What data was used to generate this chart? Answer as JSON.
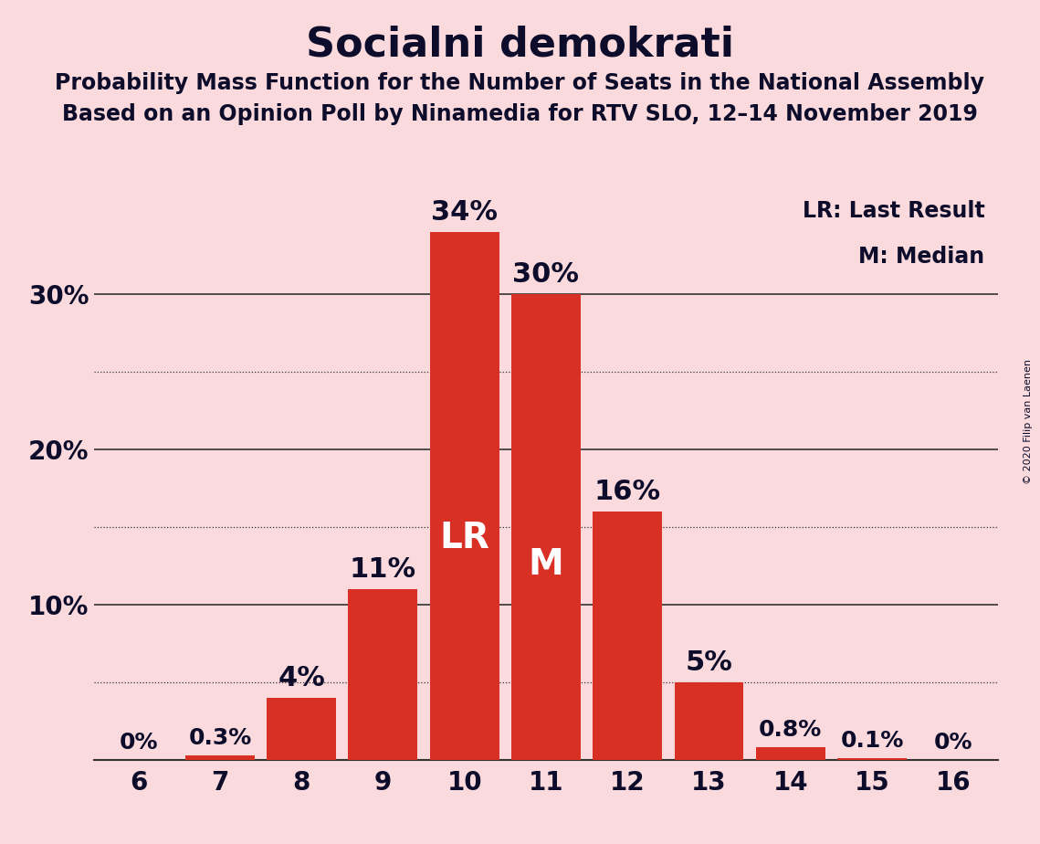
{
  "title": "Socialni demokrati",
  "subtitle1": "Probability Mass Function for the Number of Seats in the National Assembly",
  "subtitle2": "Based on an Opinion Poll by Ninamedia for RTV SLO, 12–14 November 2019",
  "copyright": "© 2020 Filip van Laenen",
  "categories": [
    6,
    7,
    8,
    9,
    10,
    11,
    12,
    13,
    14,
    15,
    16
  ],
  "values": [
    0.0,
    0.3,
    4.0,
    11.0,
    34.0,
    30.0,
    16.0,
    5.0,
    0.8,
    0.1,
    0.0
  ],
  "labels": [
    "0%",
    "0.3%",
    "4%",
    "11%",
    "34%",
    "30%",
    "16%",
    "5%",
    "0.8%",
    "0.1%",
    "0%"
  ],
  "bar_color": "#d93025",
  "background_color": "#fadadd",
  "title_color": "#0d0d2b",
  "lr_bar": 10,
  "median_bar": 11,
  "lr_label": "LR",
  "median_label": "M",
  "legend_lr": "LR: Last Result",
  "legend_m": "M: Median",
  "ylim": [
    0,
    37
  ],
  "dotted_grid_values": [
    5,
    15,
    25
  ],
  "solid_grid_values": [
    10,
    20,
    30
  ],
  "ytick_positions": [
    10,
    20,
    30
  ],
  "ytick_labels": [
    "10%",
    "20%",
    "30%"
  ],
  "title_fontsize": 32,
  "subtitle_fontsize": 17,
  "axis_tick_fontsize": 20,
  "bar_label_fontsize_large": 22,
  "bar_label_fontsize_small": 18,
  "inside_label_fontsize": 28,
  "legend_fontsize": 17,
  "copyright_fontsize": 8
}
